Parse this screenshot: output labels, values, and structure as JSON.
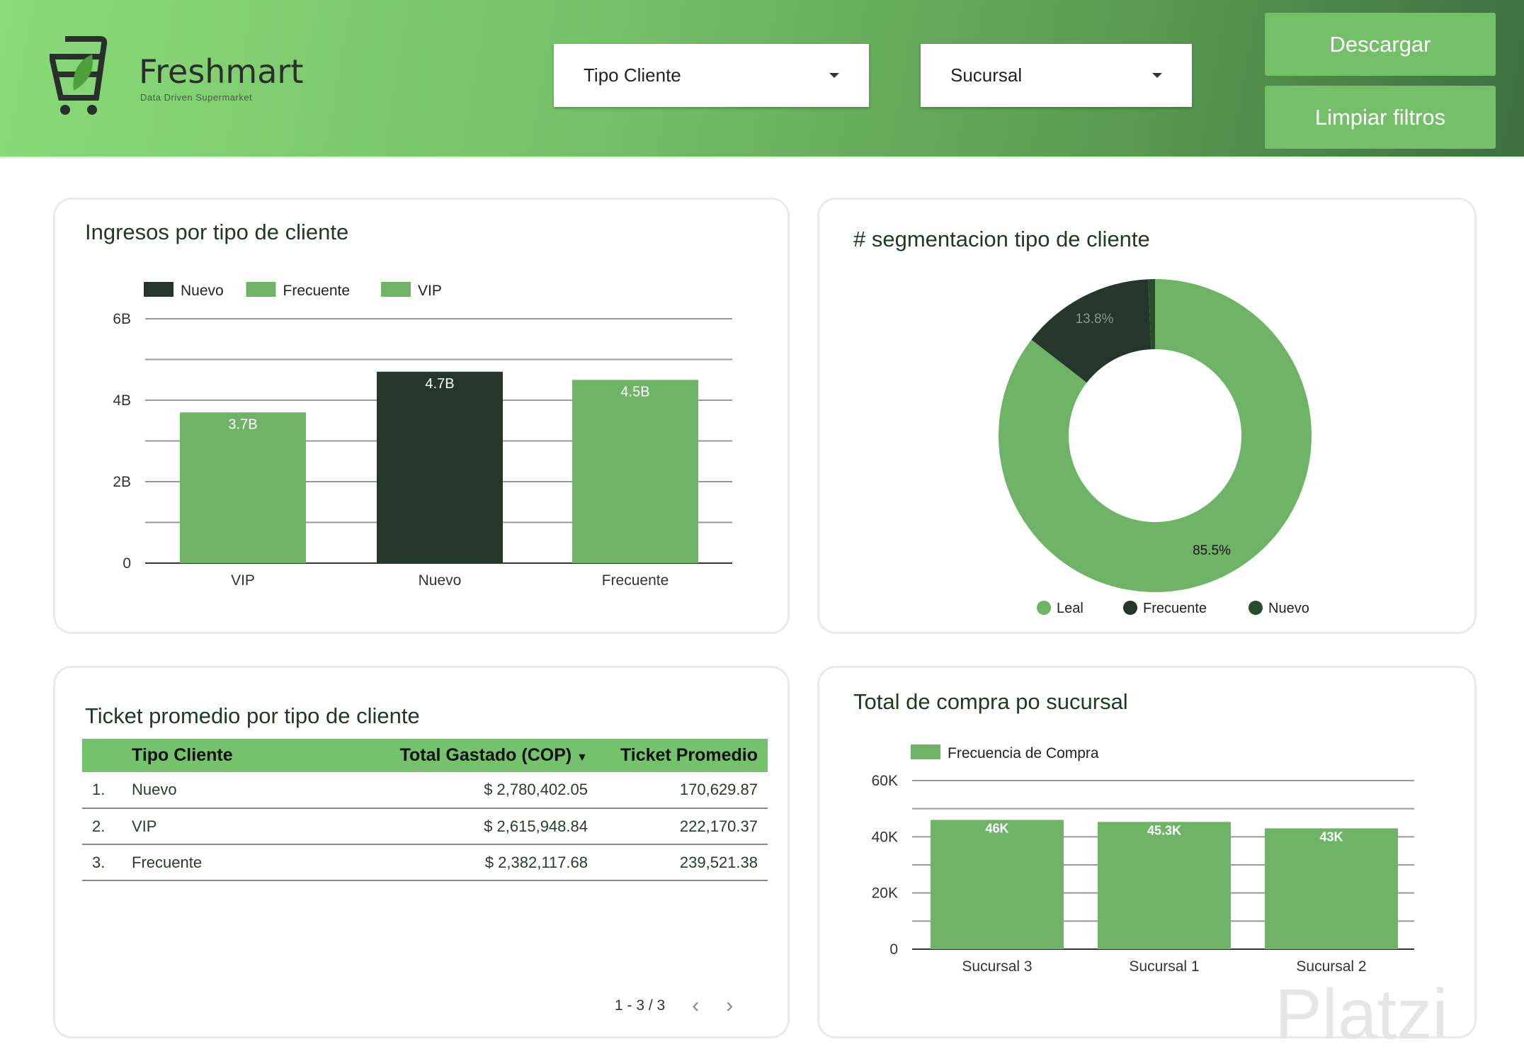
{
  "header": {
    "logo_name": "Freshmart",
    "logo_tagline": "Data Driven Supermarket",
    "filters": [
      {
        "label": "Tipo Cliente"
      },
      {
        "label": "Sucursal"
      }
    ],
    "buttons": {
      "download": "Descargar",
      "clear": "Limpiar filtros"
    }
  },
  "colors": {
    "light_green": "#6fb466",
    "dark": "#25362b",
    "header_green": "#75c26c"
  },
  "chart_data": [
    {
      "type": "bar",
      "title": "Ingresos por tipo de cliente",
      "categories": [
        "VIP",
        "Nuevo",
        "Frecuente"
      ],
      "values": [
        3.7,
        4.7,
        4.5
      ],
      "value_labels": [
        "3.7B",
        "4.7B",
        "4.5B"
      ],
      "bar_colors": [
        "#6fb466",
        "#25362b",
        "#6fb466"
      ],
      "legend": [
        "Nuevo",
        "Frecuente",
        "VIP"
      ],
      "legend_colors": [
        "#25362b",
        "#6fb466",
        "#6fb466"
      ],
      "yticks": [
        "0",
        "2B",
        "4B",
        "6B"
      ],
      "ylim": [
        0,
        6
      ],
      "unit": "B",
      "grid": true,
      "legend_position": "top-left"
    },
    {
      "type": "pie",
      "title": "# segmentacion tipo de cliente",
      "labels": [
        "Leal",
        "Frecuente",
        "Nuevo"
      ],
      "values": [
        85.5,
        13.8,
        0.7
      ],
      "value_labels": [
        "85.5%",
        "13.8%",
        ""
      ],
      "colors": [
        "#6fb466",
        "#25362b",
        "#2a4a2c"
      ],
      "legend_position": "bottom"
    },
    {
      "type": "bar",
      "title": "Total de compra po sucursal",
      "categories": [
        "Sucursal 3",
        "Sucursal 1",
        "Sucursal 2"
      ],
      "values": [
        46,
        45.3,
        43
      ],
      "value_labels": [
        "46K",
        "45.3K",
        "43K"
      ],
      "legend": [
        "Frecuencia de Compra"
      ],
      "yticks": [
        "0",
        "20K",
        "40K",
        "60K"
      ],
      "ylim": [
        0,
        60
      ],
      "unit": "K",
      "grid": true,
      "legend_position": "top-left"
    }
  ],
  "table": {
    "title": "Ticket promedio por tipo de cliente",
    "columns": [
      "Tipo Cliente",
      "Total Gastado (COP)",
      "Ticket Promedio"
    ],
    "rows": [
      [
        "1.",
        "Nuevo",
        "$ 2,780,402.05",
        "170,629.87"
      ],
      [
        "2.",
        "VIP",
        "$ 2,615,948.84",
        "222,170.37"
      ],
      [
        "3.",
        "Frecuente",
        "$ 2,382,117.68",
        "239,521.38"
      ]
    ],
    "pagination": "1 - 3 / 3"
  },
  "watermark": "Platzi"
}
